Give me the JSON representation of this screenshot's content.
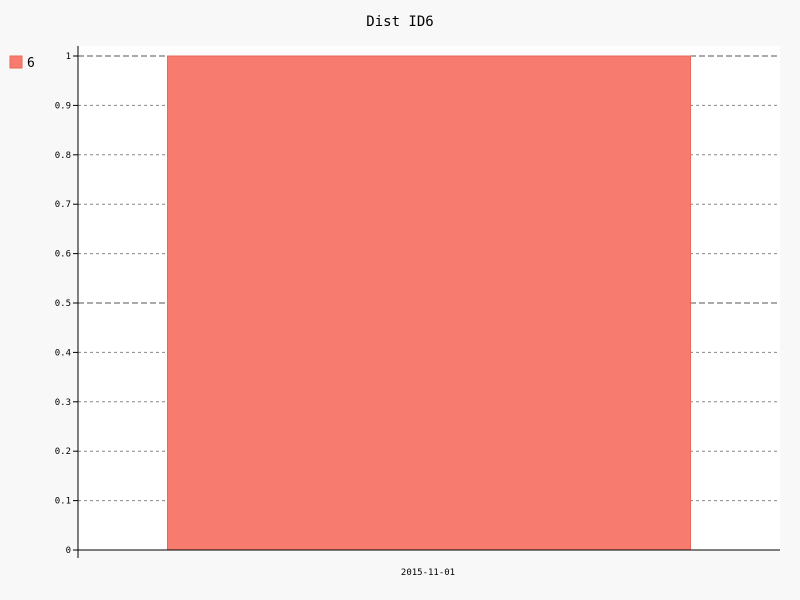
{
  "chart_data": {
    "type": "bar",
    "title": "Dist ID6",
    "xlabel": "",
    "ylabel": "",
    "categories": [
      "2015-11-01"
    ],
    "series": [
      {
        "name": "6",
        "values": [
          1
        ]
      }
    ],
    "ylim": [
      0,
      1
    ],
    "yticks": [
      "0",
      "0.1",
      "0.2",
      "0.3",
      "0.4",
      "0.5",
      "0.6",
      "0.7",
      "0.8",
      "0.9",
      "1"
    ],
    "grid": true,
    "legend_position": "left",
    "colors": {
      "series": "#f77b6e",
      "series_stroke": "#e8685c",
      "plot_background": "#ffffff",
      "page_background": "#f8f8f8",
      "grid": "#888888",
      "axis": "#000000"
    }
  }
}
